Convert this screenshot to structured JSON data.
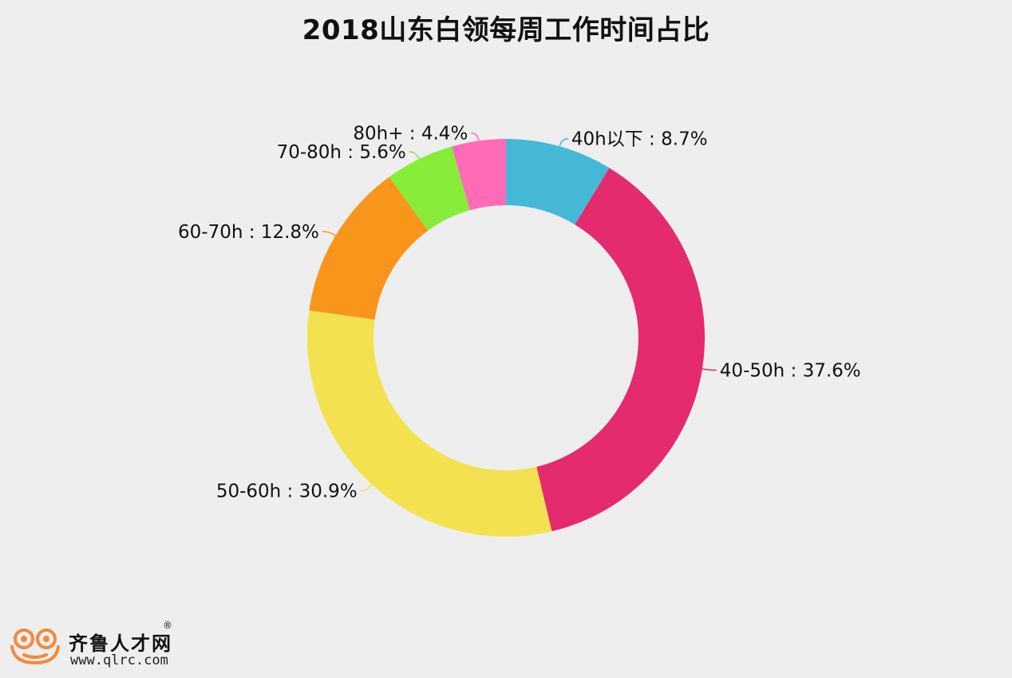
{
  "chart_data": {
    "type": "pie",
    "variant": "donut",
    "title": "2018山东白领每周工作时间占比",
    "label_separator": " : ",
    "slices": [
      {
        "label": "40h以下",
        "value": 8.7,
        "display": "8.7%",
        "color": "#45b8d6"
      },
      {
        "label": "40-50h",
        "value": 37.6,
        "display": "37.6%",
        "color": "#e32b6e"
      },
      {
        "label": "50-60h",
        "value": 30.9,
        "display": "30.9%",
        "color": "#f3e150"
      },
      {
        "label": "60-70h",
        "value": 12.8,
        "display": "12.8%",
        "color": "#f8961c"
      },
      {
        "label": "70-80h",
        "value": 5.6,
        "display": "5.6%",
        "color": "#88ec3b"
      },
      {
        "label": "80h+",
        "value": 4.4,
        "display": "4.4%",
        "color": "#ff6bb6"
      }
    ]
  },
  "logo": {
    "brand": "齐鲁人才网",
    "registered": "®",
    "url": "www.qlrc.com",
    "color": "#f08a3c"
  }
}
